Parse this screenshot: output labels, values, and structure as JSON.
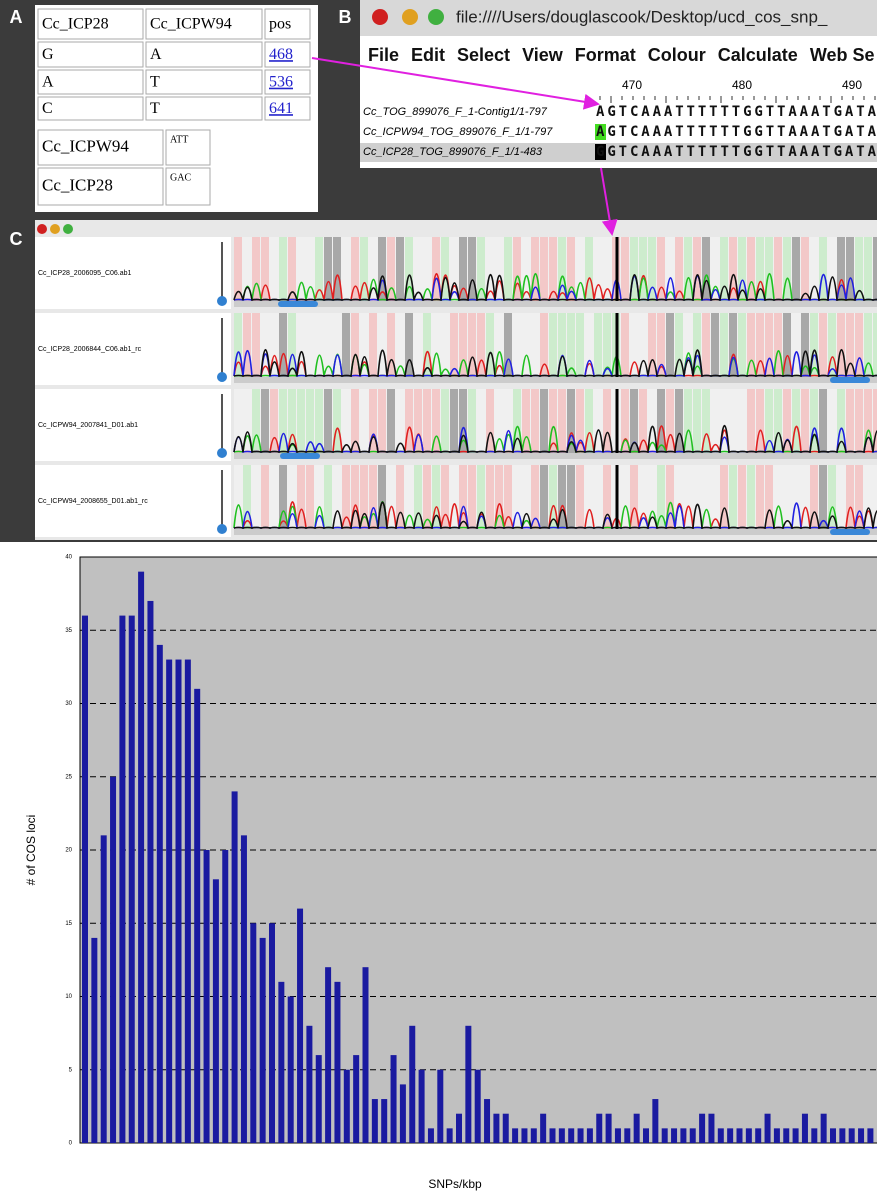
{
  "panel_a": {
    "label": "A",
    "table": {
      "header": [
        "Cc_ICP28",
        "Cc_ICPW94",
        "pos"
      ],
      "rows": [
        [
          "G",
          "A",
          "468"
        ],
        [
          "A",
          "T",
          "536"
        ],
        [
          "C",
          "T",
          "641"
        ]
      ]
    },
    "haplotypes": [
      [
        "Cc_ICPW94",
        "ATT"
      ],
      [
        "Cc_ICP28",
        "GAC"
      ]
    ]
  },
  "panel_b": {
    "label": "B",
    "window_title": "file:////Users/douglascook/Desktop/ucd_cos_snp_",
    "menu": [
      "File",
      "Edit",
      "Select",
      "View",
      "Format",
      "Colour",
      "Calculate",
      "Web Se"
    ],
    "ruler": [
      "470",
      "480",
      "490"
    ],
    "sequences": [
      {
        "name": "Cc_TOG_899076_F_1-Contig1/1-797",
        "bases": "AGTCAAATTTTTTGGTTAAATGATA"
      },
      {
        "name": "Cc_ICPW94_TOG_899076_F_1/1-797",
        "bases": "AGTCAAATTTTTTGGTTAAATGATA"
      },
      {
        "name": "Cc_ICP28_TOG_899076_F_1/1-483",
        "bases": "GGTCAAATTTTTTGGTTAAATGATA"
      }
    ]
  },
  "panel_c": {
    "label": "C",
    "traces": [
      "Cc_ICP28_2006095_C06.ab1",
      "Cc_ICP28_2006844_C06.ab1_rc",
      "Cc_ICPW94_2007841_D01.ab1",
      "Cc_ICPW94_2008655_D01.ab1_rc"
    ]
  },
  "chart_data": {
    "type": "bar",
    "x_label": "SNPs/kbp",
    "y_label": "# of COS loci",
    "color": "#1a1aa0",
    "categories": [
      null,
      null,
      null,
      null,
      null,
      null,
      null,
      null,
      null,
      null,
      null,
      null,
      null,
      null,
      null,
      null,
      null,
      null,
      null,
      null,
      null,
      null,
      null,
      null,
      null,
      null,
      null,
      null,
      null,
      null,
      null,
      null,
      null,
      null,
      null,
      null,
      null,
      null,
      null,
      null,
      null,
      null,
      null,
      null,
      null,
      null,
      null,
      null,
      null,
      null,
      null,
      null,
      null,
      null,
      null,
      null,
      null,
      null,
      null,
      null,
      null,
      null,
      null,
      null,
      null,
      null,
      null,
      null,
      null,
      null,
      null,
      null,
      null,
      null,
      null,
      null,
      null,
      null,
      null,
      null,
      null,
      null,
      null,
      null,
      null
    ],
    "values": [
      36,
      14,
      21,
      25,
      36,
      36,
      39,
      37,
      34,
      33,
      33,
      33,
      31,
      20,
      18,
      20,
      24,
      21,
      15,
      14,
      15,
      11,
      10,
      16,
      8,
      6,
      12,
      11,
      5,
      6,
      12,
      3,
      3,
      6,
      4,
      8,
      5,
      1,
      5,
      1,
      2,
      8,
      5,
      3,
      2,
      2,
      1,
      1,
      1,
      2,
      1,
      1,
      1,
      1,
      1,
      2,
      2,
      1,
      1,
      2,
      1,
      3,
      1,
      1,
      1,
      1,
      2,
      2,
      1,
      1,
      1,
      1,
      1,
      2,
      1,
      1,
      1,
      2,
      1,
      2,
      1,
      1,
      1,
      1,
      1
    ],
    "ylim": [
      0,
      40
    ],
    "yticks": [
      0,
      5,
      10,
      15,
      20,
      25,
      30,
      35,
      40
    ],
    "grid": true
  }
}
